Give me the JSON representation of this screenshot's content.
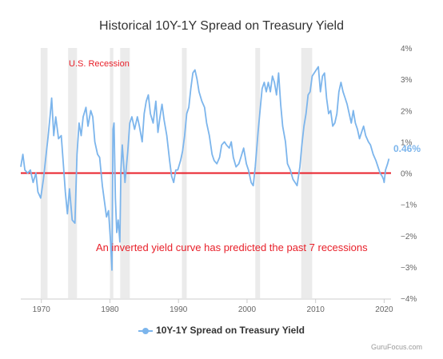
{
  "chart_data": {
    "type": "line",
    "title": "Historical 10Y-1Y Spread on Treasury Yield",
    "series": [
      {
        "name": "10Y-1Y Spread on Treasury Yield",
        "points": [
          [
            1967.0,
            0.2
          ],
          [
            1967.3,
            0.6
          ],
          [
            1967.6,
            0.1
          ],
          [
            1968.0,
            0.0
          ],
          [
            1968.4,
            0.1
          ],
          [
            1968.8,
            -0.3
          ],
          [
            1969.2,
            0.0
          ],
          [
            1969.5,
            -0.6
          ],
          [
            1969.9,
            -0.8
          ],
          [
            1970.3,
            -0.2
          ],
          [
            1970.7,
            0.6
          ],
          [
            1971.0,
            1.2
          ],
          [
            1971.3,
            1.9
          ],
          [
            1971.5,
            2.4
          ],
          [
            1971.8,
            1.2
          ],
          [
            1972.1,
            1.8
          ],
          [
            1972.5,
            1.1
          ],
          [
            1972.9,
            1.2
          ],
          [
            1973.2,
            0.3
          ],
          [
            1973.5,
            -0.6
          ],
          [
            1973.8,
            -1.3
          ],
          [
            1974.1,
            -0.5
          ],
          [
            1974.5,
            -1.5
          ],
          [
            1974.9,
            -1.6
          ],
          [
            1975.2,
            0.6
          ],
          [
            1975.5,
            1.6
          ],
          [
            1975.8,
            1.2
          ],
          [
            1976.1,
            1.8
          ],
          [
            1976.5,
            2.1
          ],
          [
            1976.8,
            1.5
          ],
          [
            1977.2,
            2.0
          ],
          [
            1977.5,
            1.8
          ],
          [
            1977.8,
            1.0
          ],
          [
            1978.2,
            0.6
          ],
          [
            1978.5,
            0.5
          ],
          [
            1978.9,
            -0.4
          ],
          [
            1979.2,
            -0.9
          ],
          [
            1979.5,
            -1.4
          ],
          [
            1979.8,
            -1.2
          ],
          [
            1980.1,
            -2.2
          ],
          [
            1980.3,
            -3.1
          ],
          [
            1980.45,
            1.4
          ],
          [
            1980.6,
            1.6
          ],
          [
            1980.8,
            -0.8
          ],
          [
            1981.0,
            -1.9
          ],
          [
            1981.2,
            -1.5
          ],
          [
            1981.45,
            -2.2
          ],
          [
            1981.6,
            0.1
          ],
          [
            1981.8,
            0.9
          ],
          [
            1982.2,
            -0.3
          ],
          [
            1982.6,
            0.7
          ],
          [
            1982.9,
            1.6
          ],
          [
            1983.2,
            1.8
          ],
          [
            1983.6,
            1.4
          ],
          [
            1984.0,
            1.8
          ],
          [
            1984.3,
            1.5
          ],
          [
            1984.7,
            1.0
          ],
          [
            1985.0,
            1.9
          ],
          [
            1985.3,
            2.3
          ],
          [
            1985.6,
            2.5
          ],
          [
            1985.9,
            1.9
          ],
          [
            1986.3,
            1.6
          ],
          [
            1986.7,
            2.3
          ],
          [
            1987.0,
            1.3
          ],
          [
            1987.3,
            1.8
          ],
          [
            1987.6,
            2.2
          ],
          [
            1987.9,
            1.7
          ],
          [
            1988.3,
            1.2
          ],
          [
            1988.7,
            0.4
          ],
          [
            1989.0,
            -0.1
          ],
          [
            1989.3,
            -0.3
          ],
          [
            1989.6,
            0.1
          ],
          [
            1989.9,
            0.1
          ],
          [
            1990.3,
            0.4
          ],
          [
            1990.6,
            0.7
          ],
          [
            1990.9,
            1.2
          ],
          [
            1991.2,
            1.9
          ],
          [
            1991.5,
            2.1
          ],
          [
            1991.8,
            2.7
          ],
          [
            1992.1,
            3.2
          ],
          [
            1992.4,
            3.3
          ],
          [
            1992.7,
            3.0
          ],
          [
            1993.0,
            2.6
          ],
          [
            1993.4,
            2.3
          ],
          [
            1993.8,
            2.1
          ],
          [
            1994.1,
            1.6
          ],
          [
            1994.5,
            1.2
          ],
          [
            1994.9,
            0.6
          ],
          [
            1995.2,
            0.4
          ],
          [
            1995.6,
            0.3
          ],
          [
            1996.0,
            0.5
          ],
          [
            1996.3,
            0.9
          ],
          [
            1996.7,
            1.0
          ],
          [
            1997.0,
            0.9
          ],
          [
            1997.4,
            0.8
          ],
          [
            1997.7,
            1.0
          ],
          [
            1998.0,
            0.5
          ],
          [
            1998.4,
            0.2
          ],
          [
            1998.8,
            0.3
          ],
          [
            1999.1,
            0.5
          ],
          [
            1999.5,
            0.8
          ],
          [
            1999.9,
            0.3
          ],
          [
            2000.2,
            0.1
          ],
          [
            2000.6,
            -0.3
          ],
          [
            2000.9,
            -0.4
          ],
          [
            2001.2,
            0.2
          ],
          [
            2001.6,
            1.3
          ],
          [
            2001.9,
            2.0
          ],
          [
            2002.2,
            2.7
          ],
          [
            2002.5,
            2.9
          ],
          [
            2002.8,
            2.6
          ],
          [
            2003.1,
            2.9
          ],
          [
            2003.4,
            2.6
          ],
          [
            2003.7,
            3.1
          ],
          [
            2004.0,
            2.9
          ],
          [
            2004.3,
            2.5
          ],
          [
            2004.6,
            3.2
          ],
          [
            2004.9,
            2.2
          ],
          [
            2005.2,
            1.5
          ],
          [
            2005.6,
            1.0
          ],
          [
            2005.9,
            0.3
          ],
          [
            2006.3,
            0.1
          ],
          [
            2006.7,
            -0.2
          ],
          [
            2007.0,
            -0.3
          ],
          [
            2007.3,
            -0.4
          ],
          [
            2007.7,
            0.2
          ],
          [
            2008.0,
            0.9
          ],
          [
            2008.3,
            1.5
          ],
          [
            2008.6,
            1.9
          ],
          [
            2008.9,
            2.5
          ],
          [
            2009.2,
            2.6
          ],
          [
            2009.5,
            3.1
          ],
          [
            2009.8,
            3.2
          ],
          [
            2010.1,
            3.3
          ],
          [
            2010.4,
            3.4
          ],
          [
            2010.7,
            2.6
          ],
          [
            2011.0,
            3.1
          ],
          [
            2011.3,
            3.2
          ],
          [
            2011.6,
            2.4
          ],
          [
            2011.9,
            1.9
          ],
          [
            2012.2,
            2.0
          ],
          [
            2012.5,
            1.5
          ],
          [
            2012.8,
            1.6
          ],
          [
            2013.1,
            1.9
          ],
          [
            2013.4,
            2.6
          ],
          [
            2013.7,
            2.9
          ],
          [
            2014.0,
            2.6
          ],
          [
            2014.3,
            2.4
          ],
          [
            2014.6,
            2.2
          ],
          [
            2014.9,
            1.9
          ],
          [
            2015.2,
            1.6
          ],
          [
            2015.5,
            2.0
          ],
          [
            2015.8,
            1.6
          ],
          [
            2016.1,
            1.4
          ],
          [
            2016.4,
            1.1
          ],
          [
            2016.7,
            1.3
          ],
          [
            2017.0,
            1.5
          ],
          [
            2017.3,
            1.2
          ],
          [
            2017.7,
            1.0
          ],
          [
            2018.0,
            0.9
          ],
          [
            2018.4,
            0.6
          ],
          [
            2018.8,
            0.4
          ],
          [
            2019.1,
            0.2
          ],
          [
            2019.4,
            0.0
          ],
          [
            2019.7,
            -0.1
          ],
          [
            2019.9,
            -0.2
          ],
          [
            2020.0,
            -0.3
          ],
          [
            2020.2,
            0.1
          ],
          [
            2020.5,
            0.3
          ],
          [
            2020.7,
            0.46
          ]
        ]
      }
    ],
    "xlim": [
      1967,
      2021
    ],
    "ylim": [
      -4,
      4
    ],
    "x_ticks": [
      1970,
      1980,
      1990,
      2000,
      2010,
      2020
    ],
    "x_tick_labels": [
      "1970",
      "1980",
      "1990",
      "2000",
      "2010",
      "2020"
    ],
    "y_ticks": [
      -4,
      -3,
      -2,
      -1,
      0,
      1,
      2,
      3,
      4
    ],
    "y_tick_labels": [
      "−4%",
      "−3%",
      "−2%",
      "−1%",
      "0%",
      "1%",
      "2%",
      "3%",
      "4%"
    ],
    "y_axis_side": "right",
    "last_value_label": "0.46%",
    "recession_bands": [
      [
        1969.9,
        1970.9
      ],
      [
        1973.9,
        1975.2
      ],
      [
        1980.0,
        1980.5
      ],
      [
        1981.5,
        1982.9
      ],
      [
        1990.5,
        1991.2
      ],
      [
        2001.2,
        2001.9
      ],
      [
        2007.9,
        2009.5
      ]
    ],
    "recession_label": "U.S. Recession",
    "annotation": "An inverted yield curve has predicted the past 7 recessions",
    "zero_line": true,
    "grid": false,
    "legend_position": "bottom",
    "credit": "GuruFocus.com",
    "colors": {
      "line": "#7cb5ec",
      "zero_line": "#e8202a",
      "recession": "#ebebeb",
      "annotation": "#e8202a"
    }
  }
}
